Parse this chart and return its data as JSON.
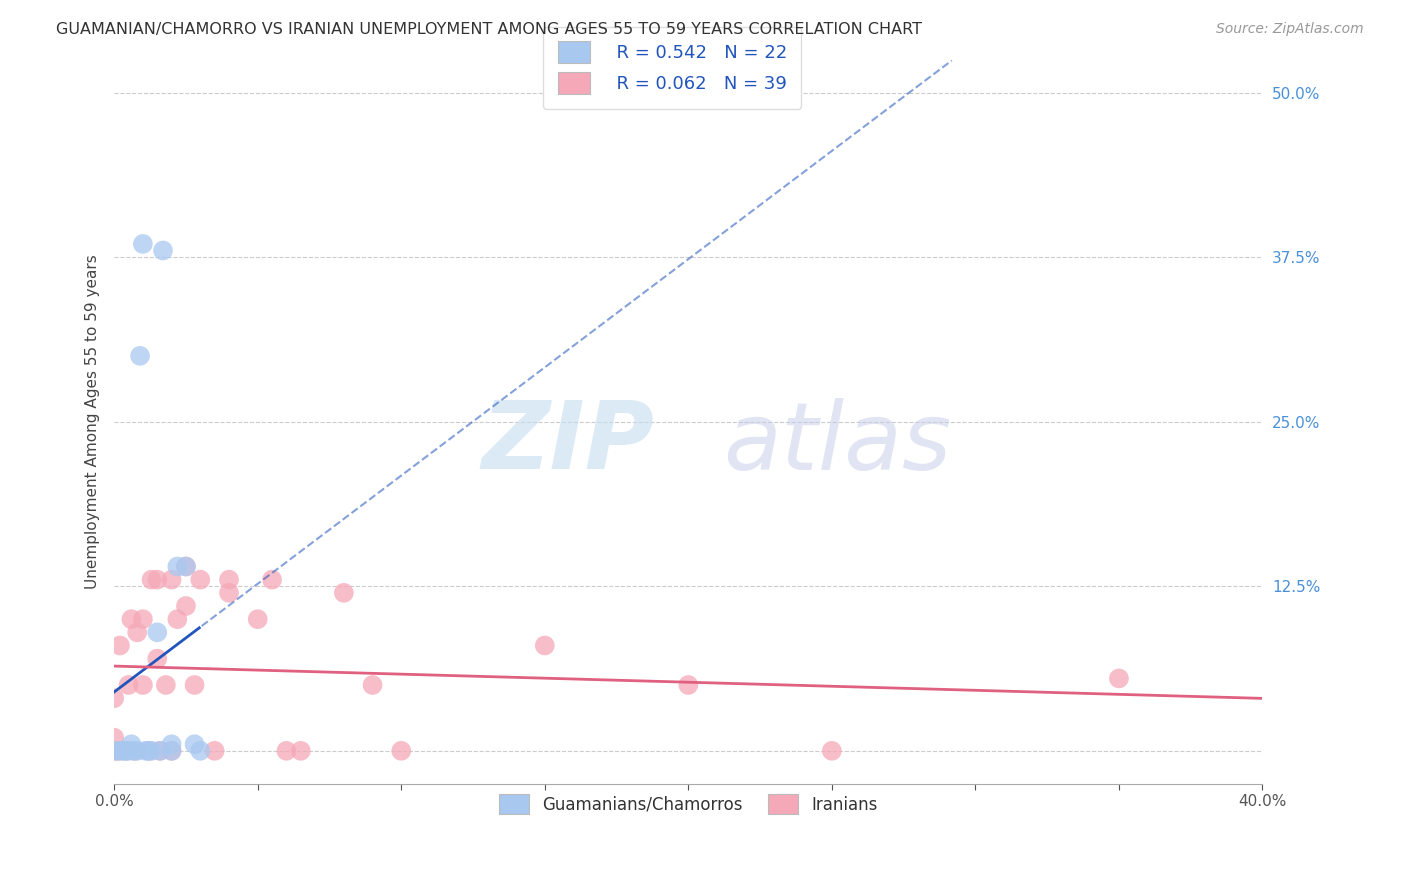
{
  "title": "GUAMANIAN/CHAMORRO VS IRANIAN UNEMPLOYMENT AMONG AGES 55 TO 59 YEARS CORRELATION CHART",
  "source": "Source: ZipAtlas.com",
  "ylabel": "Unemployment Among Ages 55 to 59 years",
  "x_min": 0.0,
  "x_max": 0.4,
  "y_min": -0.025,
  "y_max": 0.525,
  "x_ticks": [
    0.0,
    0.05,
    0.1,
    0.15,
    0.2,
    0.25,
    0.3,
    0.35,
    0.4
  ],
  "x_tick_labels": [
    "0.0%",
    "",
    "",
    "",
    "",
    "",
    "",
    "",
    "40.0%"
  ],
  "y_ticks": [
    0.0,
    0.125,
    0.25,
    0.375,
    0.5
  ],
  "y_tick_labels": [
    "",
    "12.5%",
    "25.0%",
    "37.5%",
    "50.0%"
  ],
  "guamanian_color": "#a8c8f0",
  "iranian_color": "#f5a8b8",
  "guamanian_line_color": "#2255bb",
  "iranian_line_color": "#e06080",
  "legend_R_guamanian": "R = 0.542",
  "legend_N_guamanian": "N = 22",
  "legend_R_iranian": "R = 0.062",
  "legend_N_iranian": "N = 39",
  "watermark_zip": "ZIP",
  "watermark_atlas": "atlas",
  "guamanian_x": [
    0.001,
    0.002,
    0.003,
    0.004,
    0.005,
    0.006,
    0.007,
    0.008,
    0.009,
    0.01,
    0.011,
    0.012,
    0.013,
    0.015,
    0.016,
    0.017,
    0.02,
    0.02,
    0.022,
    0.025,
    0.028,
    0.03
  ],
  "guamanian_y": [
    0.0,
    0.0,
    0.0,
    0.0,
    0.0,
    0.005,
    0.0,
    0.0,
    0.3,
    0.385,
    0.0,
    0.0,
    0.0,
    0.09,
    0.0,
    0.38,
    0.0,
    0.005,
    0.14,
    0.14,
    0.005,
    0.0
  ],
  "iranian_x": [
    0.0,
    0.0,
    0.0,
    0.001,
    0.002,
    0.004,
    0.005,
    0.006,
    0.007,
    0.008,
    0.01,
    0.01,
    0.012,
    0.013,
    0.015,
    0.015,
    0.016,
    0.018,
    0.02,
    0.02,
    0.022,
    0.025,
    0.025,
    0.028,
    0.03,
    0.035,
    0.04,
    0.04,
    0.05,
    0.055,
    0.06,
    0.065,
    0.08,
    0.09,
    0.1,
    0.15,
    0.2,
    0.25,
    0.35
  ],
  "iranian_y": [
    0.0,
    0.01,
    0.04,
    0.0,
    0.08,
    0.0,
    0.05,
    0.1,
    0.0,
    0.09,
    0.05,
    0.1,
    0.0,
    0.13,
    0.07,
    0.13,
    0.0,
    0.05,
    0.0,
    0.13,
    0.1,
    0.11,
    0.14,
    0.05,
    0.13,
    0.0,
    0.12,
    0.13,
    0.1,
    0.13,
    0.0,
    0.0,
    0.12,
    0.05,
    0.0,
    0.08,
    0.05,
    0.0,
    0.055
  ]
}
